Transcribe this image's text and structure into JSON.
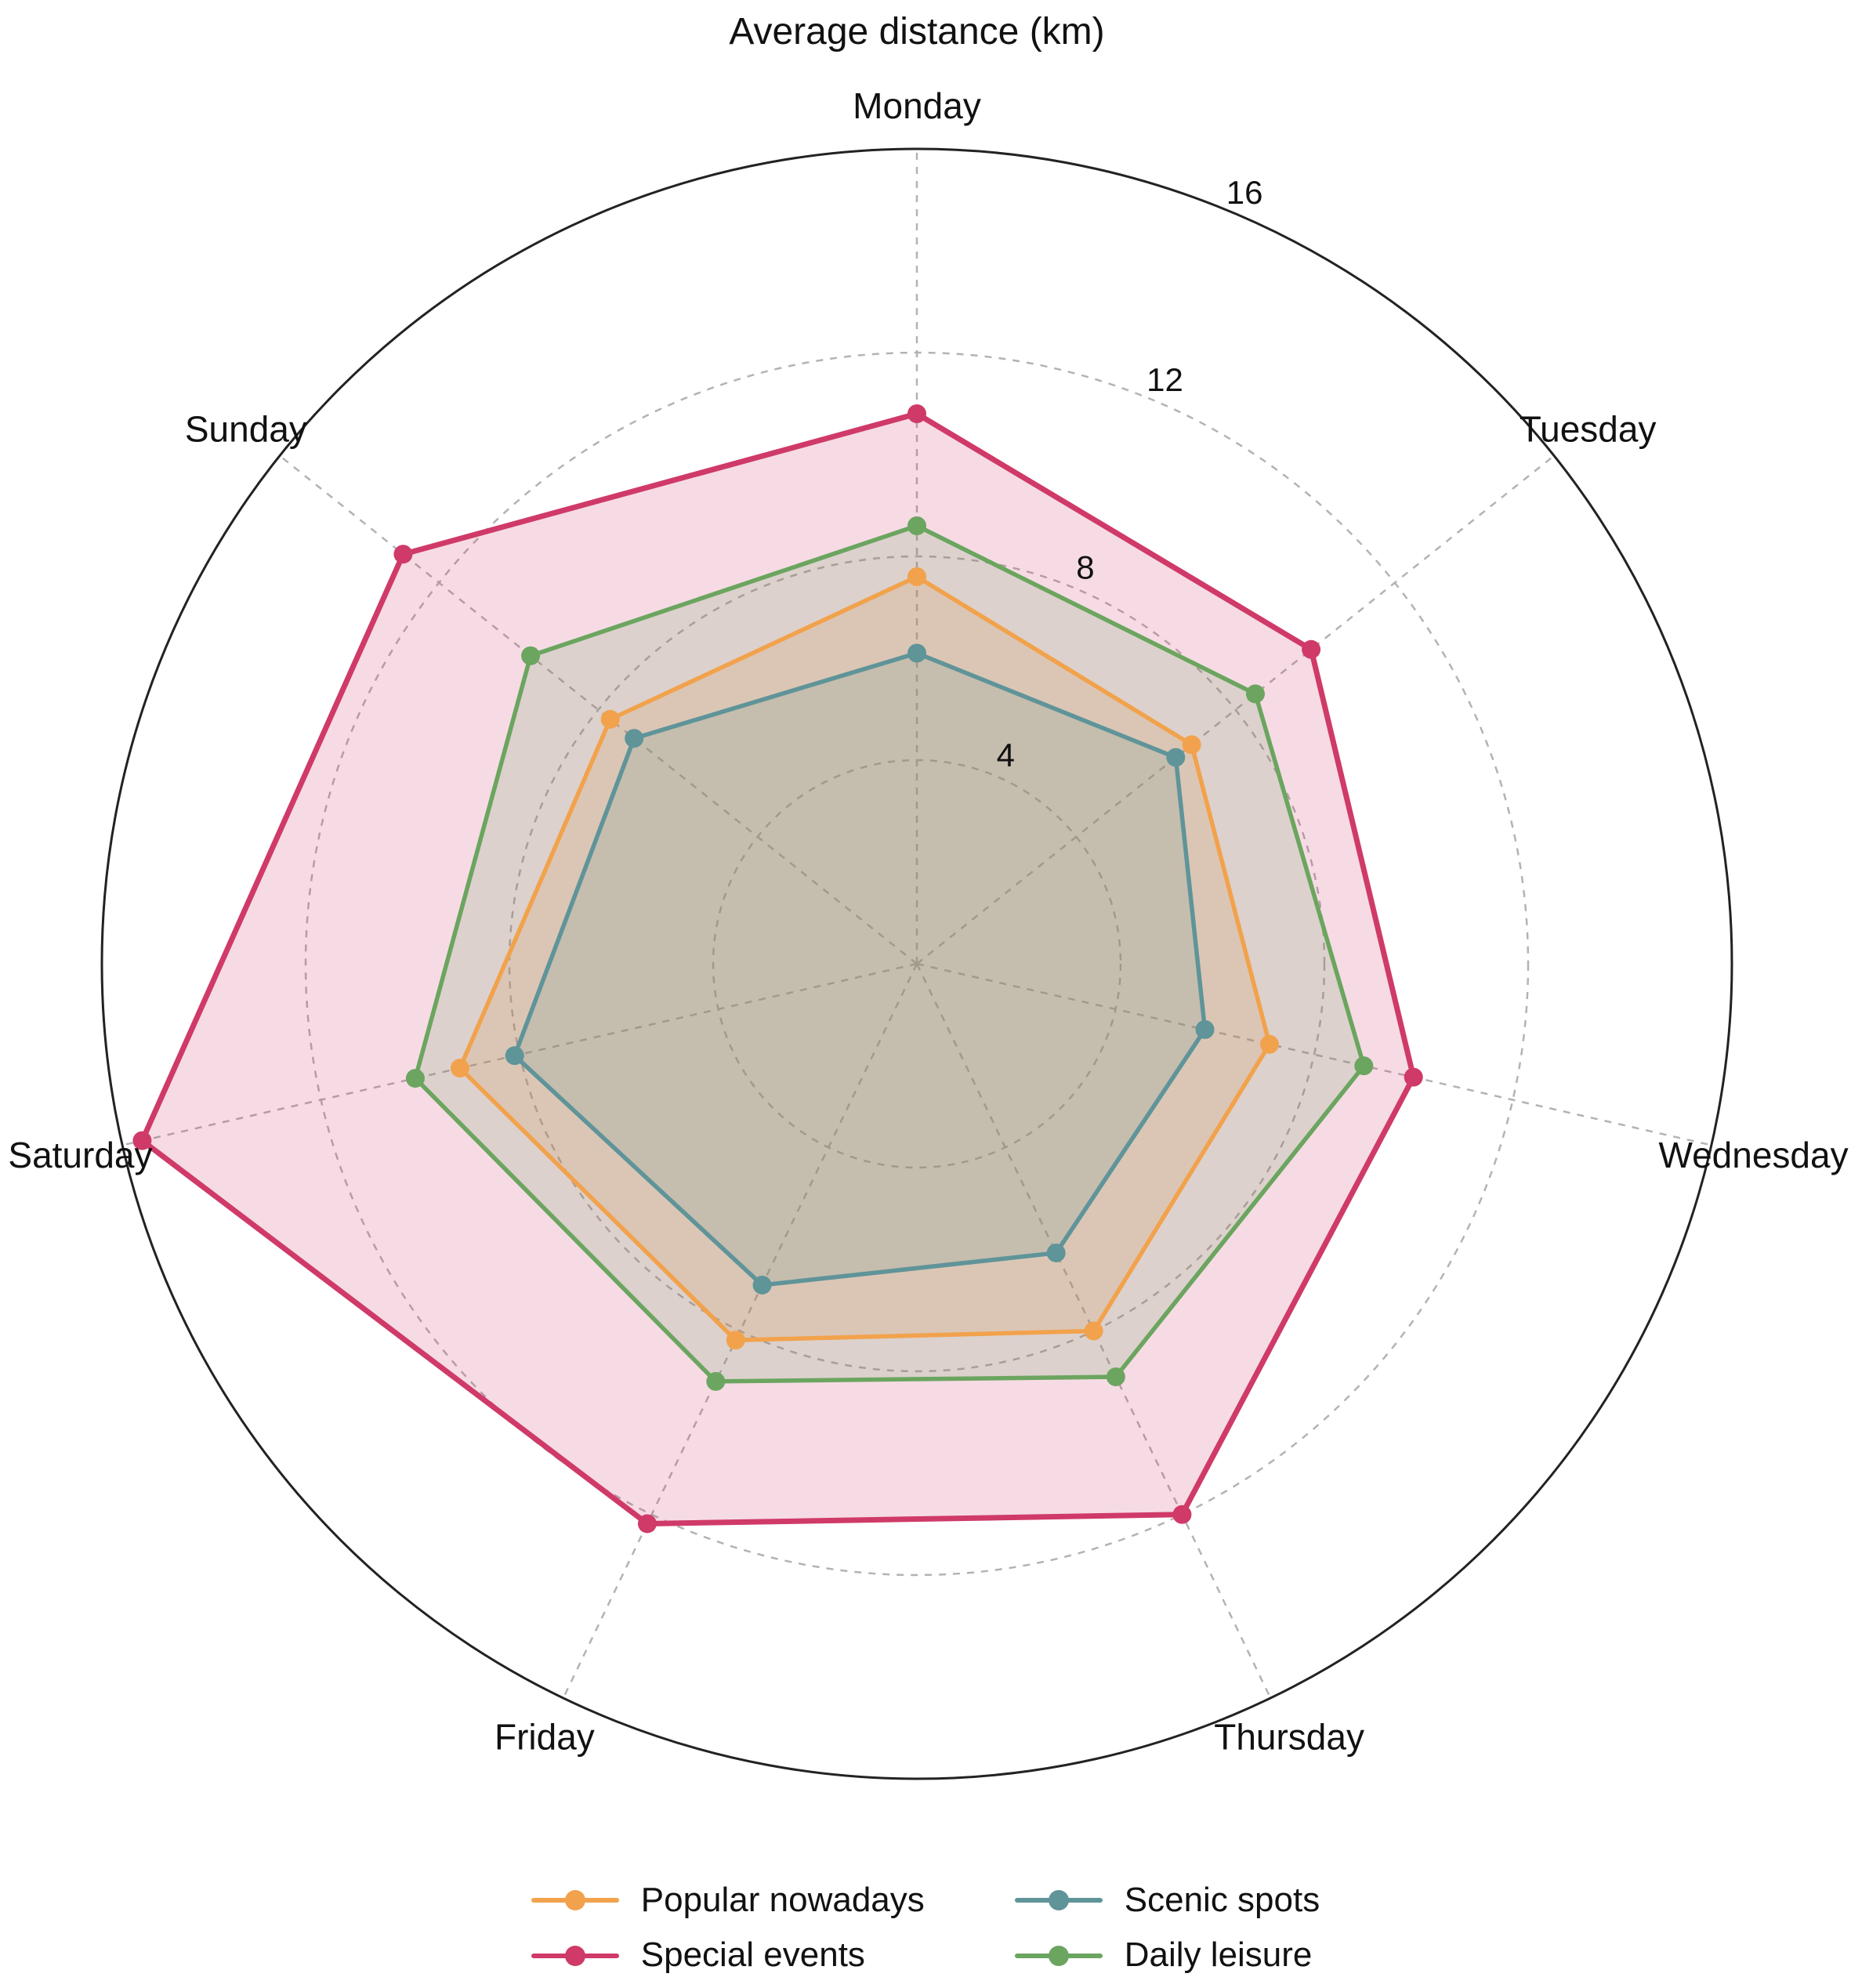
{
  "chart_data": {
    "type": "radar",
    "title": "Average distance (km)",
    "categories": [
      "Monday",
      "Tuesday",
      "Wednesday",
      "Thursday",
      "Friday",
      "Saturday",
      "Sunday"
    ],
    "r_ticks": [
      4,
      8,
      12,
      16
    ],
    "r_max": 16,
    "grid": "dashed-circles-and-spokes",
    "legend_position": "bottom",
    "legend_columns": 2,
    "series": [
      {
        "name": "Popular nowadays",
        "color": "#f2a24c",
        "line_width": 5.5,
        "values": [
          7.6,
          6.9,
          7.1,
          8.0,
          8.2,
          9.2,
          7.7
        ]
      },
      {
        "name": "Special events",
        "color": "#cf3a68",
        "line_width": 7,
        "values": [
          10.8,
          9.9,
          10.0,
          12.0,
          12.2,
          15.6,
          12.9
        ]
      },
      {
        "name": "Scenic spots",
        "color": "#5f9499",
        "line_width": 5.5,
        "values": [
          6.1,
          6.5,
          5.8,
          6.3,
          7.0,
          8.1,
          7.1
        ]
      },
      {
        "name": "Daily leisure",
        "color": "#6ba55f",
        "line_width": 5.5,
        "values": [
          8.6,
          8.5,
          9.0,
          9.0,
          9.1,
          10.1,
          9.7
        ]
      }
    ],
    "style": {
      "grid_color": "#b3b3b3",
      "outer_circle_color": "#222222",
      "fill_opacity": 0.18,
      "text_color": "#111111"
    }
  }
}
